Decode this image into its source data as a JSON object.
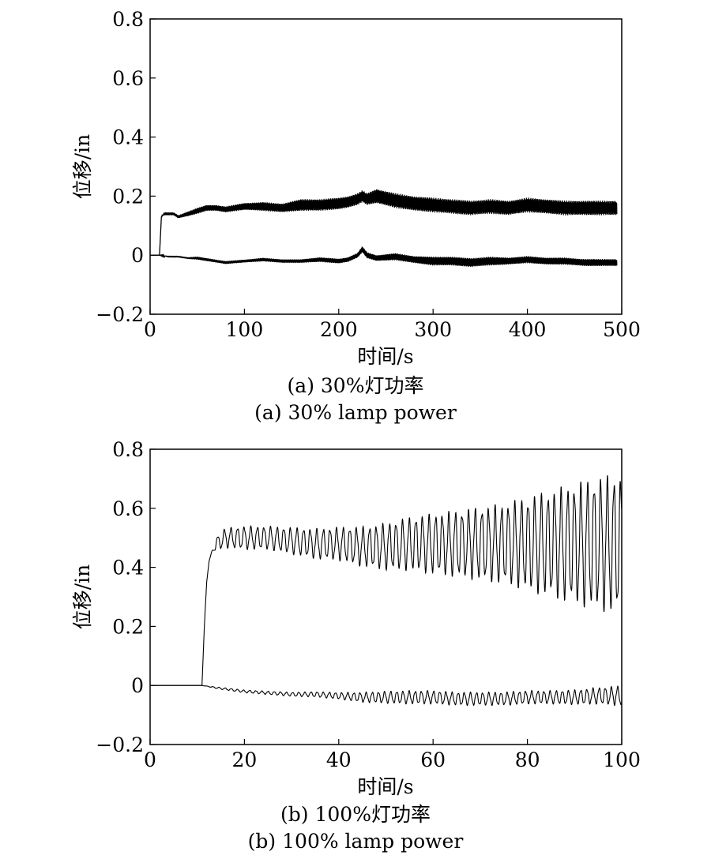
{
  "chart_data": [
    {
      "type": "line",
      "panel": "a",
      "xlabel": "时间/s",
      "ylabel": "位移/in",
      "xlim": [
        0,
        500
      ],
      "ylim": [
        -0.2,
        0.8
      ],
      "xticks": [
        0,
        100,
        200,
        300,
        400,
        500
      ],
      "xtick_labels": [
        "0",
        "100",
        "200",
        "300",
        "400",
        "500"
      ],
      "yticks": [
        -0.2,
        0,
        0.2,
        0.4,
        0.6,
        0.8
      ],
      "ytick_labels": [
        "−0.2",
        "0",
        "0.2",
        "0.4",
        "0.6",
        "0.8"
      ],
      "grid": false,
      "caption_zh": "(a) 30%灯功率",
      "caption_en": "(a) 30% lamp power",
      "series": [
        {
          "x": [
            0,
            10,
            12,
            15,
            20,
            25,
            30,
            40,
            50,
            60,
            70,
            80,
            100,
            120,
            140,
            160,
            180,
            200,
            210,
            220,
            225,
            230,
            240,
            260,
            280,
            300,
            320,
            340,
            360,
            380,
            400,
            420,
            440,
            460,
            480,
            495
          ],
          "y": [
            0.0,
            0.0,
            0.13,
            0.14,
            0.14,
            0.14,
            0.13,
            0.14,
            0.15,
            0.16,
            0.16,
            0.155,
            0.165,
            0.165,
            0.16,
            0.17,
            0.17,
            0.175,
            0.18,
            0.19,
            0.2,
            0.19,
            0.2,
            0.185,
            0.175,
            0.17,
            0.165,
            0.16,
            0.165,
            0.16,
            0.17,
            0.165,
            0.16,
            0.16,
            0.16,
            0.16
          ],
          "band": [
            0.0,
            0.0,
            0.0,
            0.005,
            0.005,
            0.005,
            0.005,
            0.008,
            0.01,
            0.01,
            0.01,
            0.01,
            0.012,
            0.015,
            0.015,
            0.02,
            0.02,
            0.02,
            0.02,
            0.02,
            0.02,
            0.02,
            0.025,
            0.025,
            0.025,
            0.025,
            0.025,
            0.025,
            0.025,
            0.025,
            0.025,
            0.025,
            0.025,
            0.025,
            0.025,
            0.025
          ]
        },
        {
          "x": [
            0,
            10,
            20,
            30,
            40,
            50,
            60,
            70,
            80,
            100,
            120,
            140,
            160,
            180,
            200,
            210,
            220,
            225,
            230,
            240,
            260,
            280,
            300,
            320,
            340,
            360,
            380,
            400,
            420,
            440,
            460,
            480,
            495
          ],
          "y": [
            0.0,
            0.0,
            -0.005,
            -0.005,
            -0.01,
            -0.01,
            -0.015,
            -0.02,
            -0.025,
            -0.02,
            -0.015,
            -0.02,
            -0.02,
            -0.015,
            -0.02,
            -0.015,
            0.0,
            0.02,
            0.0,
            -0.01,
            -0.005,
            -0.015,
            -0.02,
            -0.02,
            -0.025,
            -0.02,
            -0.02,
            -0.015,
            -0.02,
            -0.02,
            -0.025,
            -0.025,
            -0.025
          ],
          "band": [
            0.0,
            0.0,
            0.003,
            0.003,
            0.003,
            0.005,
            0.005,
            0.005,
            0.005,
            0.005,
            0.006,
            0.006,
            0.006,
            0.008,
            0.008,
            0.008,
            0.008,
            0.01,
            0.01,
            0.01,
            0.012,
            0.012,
            0.015,
            0.015,
            0.015,
            0.015,
            0.012,
            0.012,
            0.012,
            0.012,
            0.012,
            0.012,
            0.012
          ]
        }
      ]
    },
    {
      "type": "line",
      "panel": "b",
      "xlabel": "时间/s",
      "ylabel": "位移/in",
      "xlim": [
        0,
        100
      ],
      "ylim": [
        -0.2,
        0.8
      ],
      "xticks": [
        0,
        20,
        40,
        60,
        80,
        100
      ],
      "xtick_labels": [
        "0",
        "20",
        "40",
        "60",
        "80",
        "100"
      ],
      "yticks": [
        -0.2,
        0,
        0.2,
        0.4,
        0.6,
        0.8
      ],
      "ytick_labels": [
        "−0.2",
        "0",
        "0.2",
        "0.4",
        "0.6",
        "0.8"
      ],
      "grid": false,
      "caption_zh": "(b) 100%灯功率",
      "caption_en": "(b) 100% lamp power",
      "series": [
        {
          "x": [
            0,
            11,
            11.5,
            12,
            12.5,
            13,
            14,
            16,
            20,
            25,
            30,
            35,
            40,
            45,
            50,
            55,
            60,
            65,
            70,
            75,
            80,
            85,
            90,
            95,
            100
          ],
          "y": [
            0.0,
            0.0,
            0.2,
            0.35,
            0.42,
            0.45,
            0.48,
            0.5,
            0.5,
            0.5,
            0.49,
            0.48,
            0.48,
            0.47,
            0.47,
            0.48,
            0.48,
            0.48,
            0.48,
            0.48,
            0.48,
            0.48,
            0.48,
            0.48,
            0.48
          ],
          "osc_amplitude": [
            0.0,
            0.0,
            0.0,
            0.0,
            0.0,
            0.0,
            0.02,
            0.03,
            0.035,
            0.035,
            0.04,
            0.045,
            0.05,
            0.06,
            0.07,
            0.08,
            0.09,
            0.1,
            0.11,
            0.12,
            0.14,
            0.16,
            0.18,
            0.2,
            0.21
          ],
          "osc_period": 1.4
        },
        {
          "x": [
            0,
            11,
            15,
            20,
            25,
            30,
            35,
            40,
            45,
            50,
            55,
            60,
            65,
            70,
            75,
            80,
            85,
            90,
            95,
            100
          ],
          "y": [
            0.0,
            0.0,
            -0.01,
            -0.02,
            -0.025,
            -0.03,
            -0.03,
            -0.035,
            -0.04,
            -0.04,
            -0.04,
            -0.04,
            -0.045,
            -0.045,
            -0.045,
            -0.04,
            -0.04,
            -0.04,
            -0.035,
            -0.035
          ],
          "osc_amplitude": [
            0.0,
            0.0,
            0.003,
            0.004,
            0.005,
            0.006,
            0.008,
            0.01,
            0.015,
            0.018,
            0.02,
            0.02,
            0.02,
            0.02,
            0.02,
            0.02,
            0.02,
            0.022,
            0.025,
            0.03
          ],
          "osc_period": 1.3
        }
      ]
    }
  ]
}
